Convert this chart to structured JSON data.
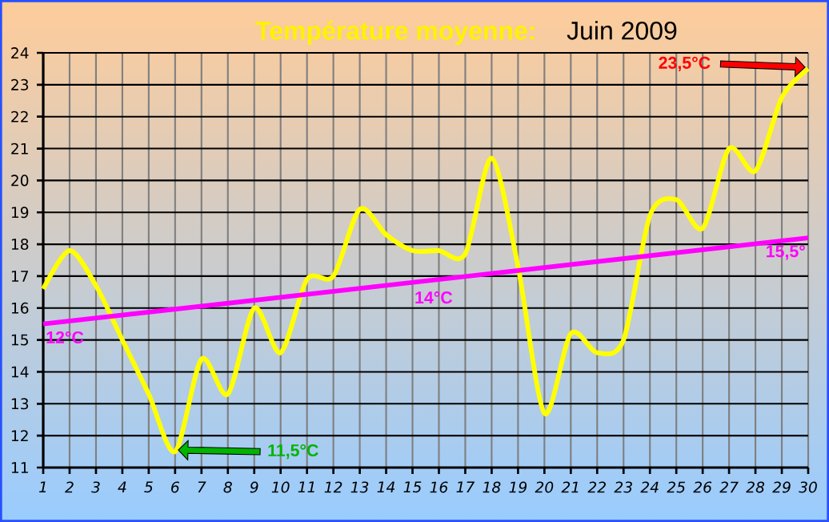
{
  "chart_data": {
    "type": "line",
    "title": "Température moyenne:",
    "subtitle": "Juin 2009",
    "x": [
      1,
      2,
      3,
      4,
      5,
      6,
      7,
      8,
      9,
      10,
      11,
      12,
      13,
      14,
      15,
      16,
      17,
      18,
      19,
      20,
      21,
      22,
      23,
      24,
      25,
      26,
      27,
      28,
      29,
      30
    ],
    "series": [
      {
        "color": "#ffff00",
        "values": [
          16.6,
          17.8,
          16.7,
          15.0,
          13.3,
          11.5,
          14.4,
          13.3,
          16.0,
          14.6,
          16.9,
          17.0,
          19.1,
          18.3,
          17.8,
          17.8,
          17.7,
          20.7,
          17.3,
          12.7,
          15.2,
          14.6,
          15.0,
          18.9,
          19.4,
          18.5,
          21.0,
          20.3,
          22.6,
          23.5
        ]
      },
      {
        "color": "#ff00ff",
        "x": [
          1,
          30
        ],
        "values": [
          15.5,
          18.2
        ]
      }
    ],
    "xlim": [
      1,
      30
    ],
    "xticks": [
      1,
      2,
      3,
      4,
      5,
      6,
      7,
      8,
      9,
      10,
      11,
      12,
      13,
      14,
      15,
      16,
      17,
      18,
      19,
      20,
      21,
      22,
      23,
      24,
      25,
      26,
      27,
      28,
      29,
      30
    ],
    "ylim": [
      11,
      24
    ],
    "yticks": [
      11,
      12,
      13,
      14,
      15,
      16,
      17,
      18,
      19,
      20,
      21,
      22,
      23,
      24
    ],
    "grid": true,
    "marker": "none",
    "line_style": "solid",
    "annotations": [
      "12°C",
      "14°C",
      "15,5°",
      "23,5°C",
      "11,5°C"
    ]
  }
}
